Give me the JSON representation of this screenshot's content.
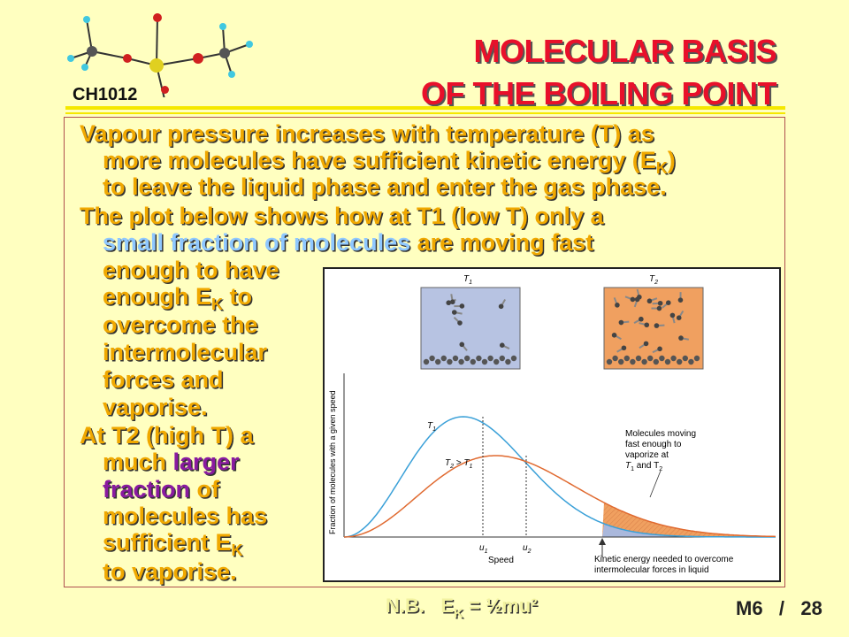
{
  "header": {
    "title_line1": "MOLECULAR BASIS",
    "title_line2": "OF THE BOILING POINT",
    "course_code": "CH1012"
  },
  "body": {
    "p1_l1": "Vapour pressure increases with temperature (T) as",
    "p1_l2a": "more molecules have sufficient kinetic energy (E",
    "p1_l2_sub": "K",
    "p1_l2b": ")",
    "p1_l3": "to leave the liquid phase and enter the gas phase.",
    "p2_l1": "The plot below shows how at T1 (low T) only a",
    "p2_l2_highlight": "small fraction of molecules",
    "p2_l2_rest": " are moving fast",
    "p2_l3": "enough to have",
    "p2_l4a": "enough E",
    "p2_l4_sub": "K",
    "p2_l4b": " to",
    "p2_l5": "overcome the",
    "p2_l6": "intermolecular",
    "p2_l7": "forces and",
    "p2_l8": "vaporise.",
    "p3_l1": "At T2 (high T) a",
    "p3_l2a": "much ",
    "p3_l2_highlight": "larger",
    "p3_l3_highlight": "fraction",
    "p3_l3_rest": " of",
    "p3_l4": "molecules has",
    "p3_l5a": "sufficient E",
    "p3_l5_sub": "K",
    "p3_l6": "to vaporise."
  },
  "figure": {
    "box1_label": "T",
    "box1_sub": "1",
    "box2_label": "T",
    "box2_sub": "2",
    "ylabel": "Fraction of molecules with a given speed",
    "xlabel": "Speed",
    "curve1_label": "T",
    "curve1_sub": "1",
    "curve2_label_a": "T",
    "curve2_label_sub_a": "2",
    "curve2_label_mid": " > T",
    "curve2_label_sub_b": "1",
    "u1": "u",
    "u1_sub": "1",
    "u2": "u",
    "u2_sub": "2",
    "annot_l1": "Molecules moving",
    "annot_l2": "fast enough to",
    "annot_l3": "vaporize at",
    "annot_l4a": "T",
    "annot_l4_sub1": "1",
    "annot_l4b": " and T",
    "annot_l4_sub2": "2",
    "arrow_l1": "Kinetic energy needed to overcome",
    "arrow_l2": "intermolecular forces in liquid",
    "colors": {
      "t1_curve": "#3aa0d8",
      "t2_curve": "#e06a30",
      "t1_fill": "#aab8dc",
      "t2_fill": "#f0a060"
    }
  },
  "footer": {
    "nb_label": "N.B.",
    "formula_a": "E",
    "formula_sub": "K",
    "formula_b": " = ½mu²",
    "slide_module": "M6",
    "slide_sep": "/",
    "slide_number": "28"
  }
}
